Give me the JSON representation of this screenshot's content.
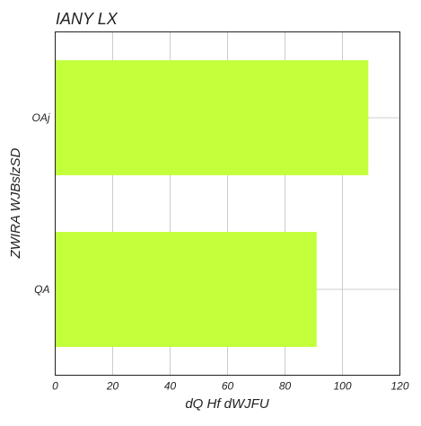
{
  "chart_data": {
    "type": "bar",
    "orientation": "horizontal",
    "title": "IANY LX",
    "xlabel": "dQ  Hf dWJFU",
    "ylabel": "ZWIRA WJBslzSD",
    "categories": [
      "OAj",
      "QA"
    ],
    "series": [
      {
        "values": [
          109,
          91
        ]
      }
    ],
    "xlim": [
      0,
      120
    ],
    "xticks": [
      "0",
      "20",
      "40",
      "60",
      "80",
      "100",
      "120"
    ],
    "grid": true,
    "bar_color": "#c3ff3a"
  }
}
